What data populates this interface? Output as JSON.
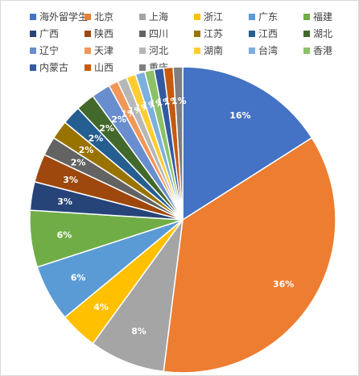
{
  "chart_data": {
    "type": "pie",
    "title": "",
    "legend_position": "top",
    "slices": [
      {
        "name": "海外留学生",
        "value": 16,
        "label": "16%",
        "color": "#4472C4"
      },
      {
        "name": "北京",
        "value": 36,
        "label": "36%",
        "color": "#ED7D31"
      },
      {
        "name": "上海",
        "value": 8,
        "label": "8%",
        "color": "#A5A5A5"
      },
      {
        "name": "浙江",
        "value": 4,
        "label": "4%",
        "color": "#FFC000"
      },
      {
        "name": "广东",
        "value": 6,
        "label": "6%",
        "color": "#5B9BD5"
      },
      {
        "name": "福建",
        "value": 6,
        "label": "6%",
        "color": "#70AD47"
      },
      {
        "name": "广西",
        "value": 3,
        "label": "3%",
        "color": "#264478"
      },
      {
        "name": "陕西",
        "value": 3,
        "label": "3%",
        "color": "#9E480E"
      },
      {
        "name": "四川",
        "value": 2,
        "label": "2%",
        "color": "#636363"
      },
      {
        "name": "江苏",
        "value": 2,
        "label": "2%",
        "color": "#997300"
      },
      {
        "name": "江西",
        "value": 2,
        "label": "2%",
        "color": "#255E91"
      },
      {
        "name": "湖北",
        "value": 2,
        "label": "2%",
        "color": "#43682B"
      },
      {
        "name": "辽宁",
        "value": 2,
        "label": "2%",
        "color": "#698ED0"
      },
      {
        "name": "天津",
        "value": 1,
        "label": "1%",
        "color": "#F1975A"
      },
      {
        "name": "河北",
        "value": 1,
        "label": "1%",
        "color": "#B7B7B7"
      },
      {
        "name": "湖南",
        "value": 1,
        "label": "1%",
        "color": "#FFCD33"
      },
      {
        "name": "台湾",
        "value": 1,
        "label": "1%",
        "color": "#7CAFDD"
      },
      {
        "name": "香港",
        "value": 1,
        "label": "1%",
        "color": "#8CC168"
      },
      {
        "name": "内蒙古",
        "value": 1,
        "label": "1%",
        "color": "#335AA1"
      },
      {
        "name": "山西",
        "value": 1,
        "label": "1%",
        "color": "#C55A11"
      },
      {
        "name": "重庆",
        "value": 1,
        "label": "1%",
        "color": "#7F7F7F"
      }
    ]
  }
}
